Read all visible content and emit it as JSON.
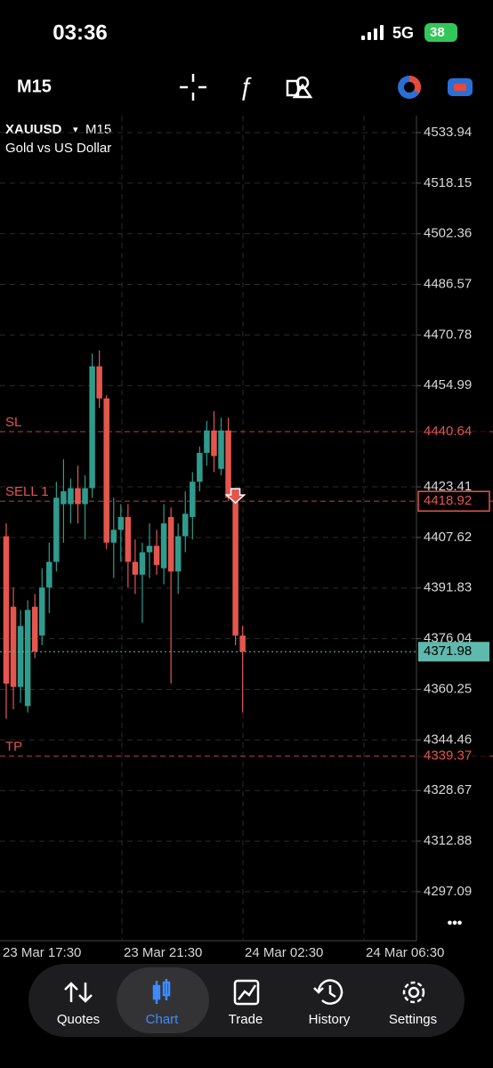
{
  "status_bar": {
    "time": "03:36",
    "network": "5G",
    "battery": "38"
  },
  "toolbar": {
    "timeframe": "M15"
  },
  "chart_data": {
    "type": "candlestick",
    "symbol": "XAUUSD",
    "dropdown": "▾",
    "timeframe": "M15",
    "subtitle": "Gold vs US Dollar",
    "open": [
      4408,
      4386,
      4361,
      4355,
      4386,
      4377,
      4392,
      4400,
      4418,
      4418,
      4423,
      4418,
      4423,
      4461,
      4451,
      4406,
      4410,
      4414,
      4400,
      4396,
      4403,
      4405,
      4398,
      4414,
      4397,
      4408,
      4414,
      4425,
      4434,
      4441,
      4429,
      4441,
      4420,
      4377
    ],
    "high": [
      4412,
      4392,
      4385,
      4388,
      4390,
      4398,
      4406,
      4425,
      4432,
      4426,
      4430,
      4427,
      4465,
      4466,
      4452,
      4420,
      4418,
      4418,
      4407,
      4406,
      4412,
      4410,
      4418,
      4417,
      4412,
      4422,
      4428,
      4436,
      4444,
      4447,
      4445,
      4445,
      4421,
      4380
    ],
    "low": [
      4351,
      4354,
      4356,
      4353,
      4370,
      4374,
      4384,
      4397,
      4406,
      4412,
      4412,
      4407,
      4420,
      4448,
      4404,
      4395,
      4400,
      4392,
      4390,
      4381,
      4395,
      4396,
      4393,
      4362,
      4390,
      4403,
      4407,
      4422,
      4430,
      4428,
      4427,
      4419,
      4374,
      4353
    ],
    "close": [
      4362,
      4361,
      4380,
      4385,
      4372,
      4392,
      4400,
      4420,
      4422,
      4423,
      4418,
      4423,
      4461,
      4451,
      4406,
      4410,
      4414,
      4400,
      4396,
      4403,
      4405,
      4399,
      4412,
      4397,
      4408,
      4415,
      4425,
      4434,
      4441,
      4433,
      4441,
      4420,
      4377,
      4372
    ],
    "up_color": "#2f9b8d",
    "down_color": "#e3564e",
    "ylim": [
      4281.8,
      4539.2
    ],
    "yticks": [
      4533.94,
      4518.15,
      4502.36,
      4486.57,
      4470.78,
      4454.99,
      4423.41,
      4407.62,
      4391.83,
      4376.04,
      4360.25,
      4344.46,
      4328.67,
      4312.88,
      4297.09
    ],
    "x_labels": [
      "23 Mar 17:30",
      "23 Mar 21:30",
      "24 Mar 02:30",
      "24 Mar 06:30"
    ],
    "grid": true,
    "levels": [
      {
        "label": "SL",
        "value": 4440.64,
        "color": "#e3564e"
      },
      {
        "label": "SELL 1",
        "value": 4418.92,
        "color": "#e3564e"
      },
      {
        "label": "TP",
        "value": 4339.37,
        "color": "#e3564e"
      }
    ],
    "last_price": 4371.98,
    "last_color": "#5fb9ad"
  },
  "more": "•••",
  "nav": {
    "items": [
      "Quotes",
      "Chart",
      "Trade",
      "History",
      "Settings"
    ],
    "active": "Chart"
  }
}
